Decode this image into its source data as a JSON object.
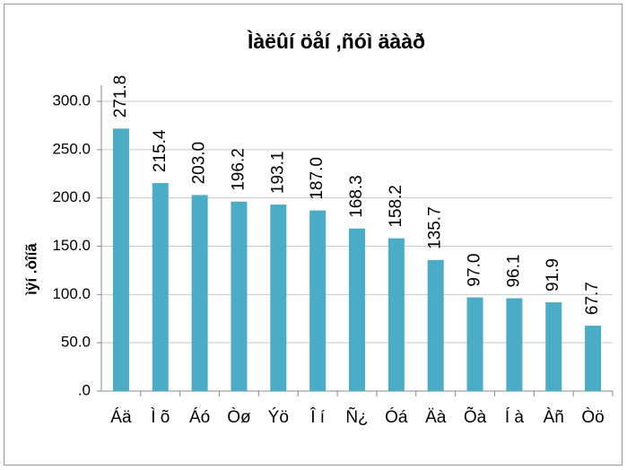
{
  "chart_data": {
    "type": "bar",
    "title": "Ìàëûí öåí ,ñóì äààð",
    "y_label": "ìÿí .òîíã",
    "categories": [
      "Áä",
      "Ì õ",
      "Áó",
      "Òø",
      "Ýö",
      "Î í",
      "Ñ¿",
      "Óá",
      "Äà",
      "Õà",
      "Í à",
      "Àñ",
      "Òö"
    ],
    "values": [
      271.8,
      215.4,
      203.0,
      196.2,
      193.1,
      187.0,
      168.3,
      158.2,
      135.7,
      97.0,
      96.1,
      91.9,
      67.7
    ],
    "value_labels": [
      "271.8",
      "215.4",
      "203.0",
      "196.2",
      "193.1",
      "187.0",
      "168.3",
      "158.2",
      "135.7",
      "97.0",
      "96.1",
      "91.9",
      "67.7"
    ],
    "color": "#4bacc6",
    "ylim": [
      0,
      300
    ],
    "yticks": [
      {
        "value": 0,
        "label": ".0"
      },
      {
        "value": 50,
        "label": "50.0"
      },
      {
        "value": 100,
        "label": "100.0"
      },
      {
        "value": 150,
        "label": "150.0"
      },
      {
        "value": 200,
        "label": "200.0"
      },
      {
        "value": 250,
        "label": "250.0"
      },
      {
        "value": 300,
        "label": "300.0"
      }
    ],
    "grid": true
  }
}
